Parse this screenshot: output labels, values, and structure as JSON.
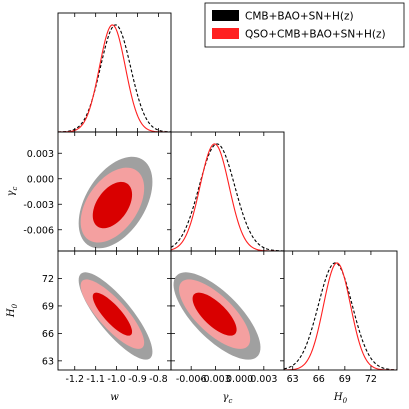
{
  "chart_data": {
    "type": "triangle",
    "parameters": [
      {
        "key": "w",
        "label": "w",
        "sub": "",
        "lim": [
          -1.28,
          -0.74
        ],
        "ticks": [
          "-1.2",
          "-1.1",
          "-1.0",
          "-0.9",
          "-0.8"
        ],
        "tick_values": [
          -1.2,
          -1.1,
          -1.0,
          -0.9,
          -0.8
        ]
      },
      {
        "key": "gamma_c",
        "label": "γ",
        "sub": "c",
        "lim": [
          -0.0085,
          0.0055
        ],
        "ticks": [
          "-0.006",
          "-0.003",
          "0.000",
          "0.003"
        ],
        "tick_values": [
          -0.006,
          -0.003,
          0.0,
          0.003
        ]
      },
      {
        "key": "H0",
        "label": "H",
        "sub": "0",
        "lim": [
          62.0,
          75.0
        ],
        "ticks": [
          "63",
          "66",
          "69",
          "72"
        ],
        "tick_values": [
          63,
          66,
          69,
          72
        ]
      }
    ],
    "series": [
      {
        "name": "CMB+BAO+SN+H(z)",
        "color": "#000000",
        "fill_levels": [
          "#a0a0a0",
          "#7f7f7f"
        ],
        "line_style": "dashed",
        "mean": [
          -1.005,
          -0.0028,
          67.9
        ],
        "sigma": [
          0.072,
          0.0022,
          1.95
        ],
        "corr": {
          "w_gamma_c": 0.45,
          "w_H0": -0.82,
          "gamma_c_H0": -0.72
        }
      },
      {
        "name": "QSO+CMB+BAO+SN+H(z)",
        "color": "#ff2020",
        "fill_levels": [
          "#f4a0a0",
          "#d90000"
        ],
        "line_style": "solid",
        "mean": [
          -1.02,
          -0.0031,
          68.1
        ],
        "sigma": [
          0.062,
          0.0018,
          1.55
        ],
        "corr": {
          "w_gamma_c": 0.45,
          "w_H0": -0.82,
          "gamma_c_H0": -0.72
        }
      }
    ],
    "legend": {
      "position": "top-right"
    },
    "xticks_bottom_right": {
      "ticks": [
        "63",
        "66",
        "69",
        "72"
      ]
    }
  }
}
